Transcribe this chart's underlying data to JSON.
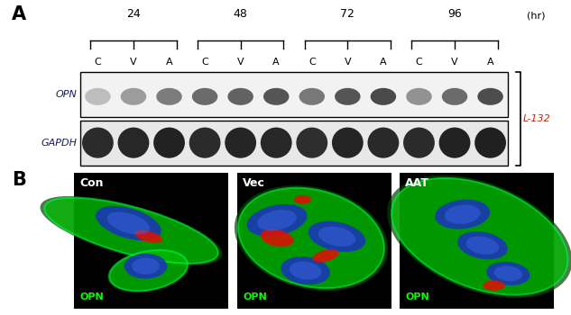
{
  "panel_A_label": "A",
  "panel_B_label": "B",
  "time_points": [
    "24",
    "48",
    "72",
    "96"
  ],
  "hr_label": "(hr)",
  "lane_labels": [
    "C",
    "V",
    "A",
    "C",
    "V",
    "A",
    "C",
    "V",
    "A",
    "C",
    "V",
    "A"
  ],
  "row_labels": [
    "OPN",
    "GAPDH"
  ],
  "side_label": "L-132",
  "cell_labels": [
    "Con",
    "Vec",
    "AAT"
  ],
  "opn_label": "OPN",
  "bg_color": "#ffffff",
  "figsize": [
    6.33,
    3.5
  ],
  "dpi": 100
}
